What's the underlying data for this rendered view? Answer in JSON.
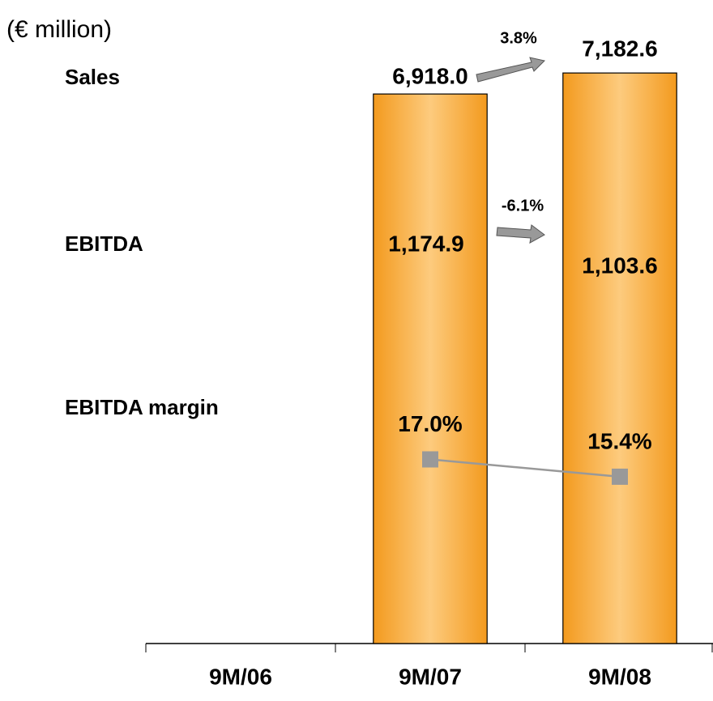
{
  "chart_data": {
    "type": "bar",
    "unit_label": "(€ million)",
    "row_labels": [
      "Sales",
      "EBITDA",
      "EBITDA margin"
    ],
    "categories": [
      "9M/06",
      "9M/07",
      "9M/08"
    ],
    "series": [
      {
        "name": "Sales",
        "color": "#f39a1e",
        "values": [
          null,
          6918.0,
          7182.6
        ],
        "value_labels": [
          null,
          "6,918.0",
          "7,182.6"
        ]
      },
      {
        "name": "EBITDA",
        "values": [
          null,
          1174.9,
          1103.6
        ],
        "value_labels": [
          null,
          "1,174.9",
          "1,103.6"
        ]
      },
      {
        "name": "EBITDA margin",
        "color": "#999999",
        "axis": "y2",
        "values": [
          null,
          17.0,
          15.4
        ],
        "value_labels": [
          null,
          "17.0%",
          "15.4%"
        ]
      }
    ],
    "annotations": [
      "3.8%",
      "-6.1%"
    ],
    "ylim": [
      0,
      7500
    ],
    "y2lim": [
      0,
      55
    ]
  }
}
